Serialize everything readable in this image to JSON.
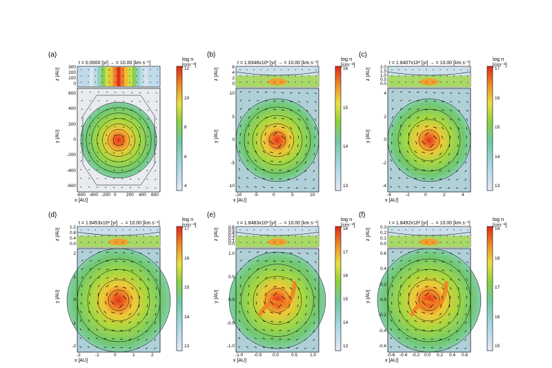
{
  "panels": [
    {
      "label": "(a)",
      "time": "t = 0.0000 [yr]",
      "arrow": "= 10.00 [km s⁻¹]",
      "cb_title": [
        "log n",
        "[cm⁻³]"
      ],
      "cb_ticks": [
        "12",
        "10",
        "8",
        "6",
        "4"
      ],
      "z_ticks": [
        "300",
        "200",
        "100",
        "0"
      ],
      "y_ticks": [
        "600",
        "400",
        "200",
        "0",
        "-200",
        "-400",
        "-600"
      ],
      "x_ticks": [
        "-600",
        "-400",
        "-200",
        "0",
        "200",
        "400",
        "600"
      ],
      "xlabel": "x [AU]",
      "ylabel": "y [AU]",
      "zlabel": "z [AU]"
    },
    {
      "label": "(b)",
      "time": "t = 1.8346x10² [yr]",
      "arrow": "= 10.00 [km s⁻¹]",
      "cb_title": [
        "log n",
        "[cm⁻³]"
      ],
      "cb_ticks": [
        "16",
        "15",
        "14",
        "13"
      ],
      "z_ticks": [
        "6",
        "4",
        "2",
        "0"
      ],
      "y_ticks": [
        "10",
        "5",
        "0",
        "-5",
        "-10"
      ],
      "x_ticks": [
        "-10",
        "-5",
        "0",
        "5",
        "10"
      ],
      "xlabel": "x [AU]",
      "ylabel": "y [AU]",
      "zlabel": "z [AU]"
    },
    {
      "label": "(c)",
      "time": "t = 1.8407x10² [yr]",
      "arrow": "= 10.00 [km s⁻¹]",
      "cb_title": [
        "log n",
        "[cm⁻³]"
      ],
      "cb_ticks": [
        "17",
        "16",
        "15",
        "14",
        "13"
      ],
      "z_ticks": [
        "2.0",
        "1.5",
        "1.0",
        "0.5",
        "0.0"
      ],
      "y_ticks": [
        "4",
        "2",
        "0",
        "-2",
        "-4"
      ],
      "x_ticks": [
        "-4",
        "-2",
        "0",
        "2",
        "4"
      ],
      "xlabel": "x [AU]",
      "ylabel": "y [AU]",
      "zlabel": "z [AU]"
    },
    {
      "label": "(d)",
      "time": "t = 1.8453x10² [yr]",
      "arrow": "= 10.00 [km s⁻¹]",
      "cb_title": [
        "log n",
        "[cm⁻³]"
      ],
      "cb_ticks": [
        "17",
        "16",
        "15",
        "14",
        "13"
      ],
      "z_ticks": [
        "1.2",
        "0.8",
        "0.4",
        "0.0"
      ],
      "y_ticks": [
        "2",
        "1",
        "0",
        "-1",
        "-2"
      ],
      "x_ticks": [
        "-2",
        "-1",
        "0",
        "1",
        "2"
      ],
      "xlabel": "x [AU]",
      "ylabel": "y [AU]",
      "zlabel": "z [AU]"
    },
    {
      "label": "(e)",
      "time": "t = 1.8483x10² [yr]",
      "arrow": "= 10.00 [km s⁻¹]",
      "cb_title": [
        "log n",
        "[cm⁻³]"
      ],
      "cb_ticks": [
        "18",
        "17",
        "16",
        "15",
        "14",
        "13"
      ],
      "z_ticks": [
        "0.6",
        "0.5",
        "0.4",
        "0.3",
        "0.2",
        "0.1",
        "0.0"
      ],
      "y_ticks": [
        "1.0",
        "0.5",
        "0.0",
        "-0.5",
        "-1.0"
      ],
      "x_ticks": [
        "-1.0",
        "-0.5",
        "0.0",
        "0.5",
        "1.0"
      ],
      "xlabel": "x [AU]",
      "ylabel": "y [AU]",
      "zlabel": "z [AU]"
    },
    {
      "label": "(f)",
      "time": "t = 1.8492x10² [yr]",
      "arrow": "= 10.00 [km s⁻¹]",
      "cb_title": [
        "log n",
        "[cm⁻³]"
      ],
      "cb_ticks": [
        "19",
        "18",
        "17",
        "16",
        "15"
      ],
      "z_ticks": [
        "0.3",
        "0.2",
        "0.1",
        "0.0"
      ],
      "y_ticks": [
        "0.6",
        "0.4",
        "0.2",
        "0.0",
        "-0.2",
        "-0.4",
        "-0.6"
      ],
      "x_ticks": [
        "-0.6",
        "-0.4",
        "-0.2",
        "0.0",
        "0.2",
        "0.4",
        "0.6"
      ],
      "xlabel": "x [AU]",
      "ylabel": "y [AU]",
      "zlabel": "z [AU]"
    }
  ],
  "colors": {
    "core": "#e8401c",
    "mid": "#8ccc3c",
    "low": "#c8d8e8",
    "frame": "#000000"
  }
}
